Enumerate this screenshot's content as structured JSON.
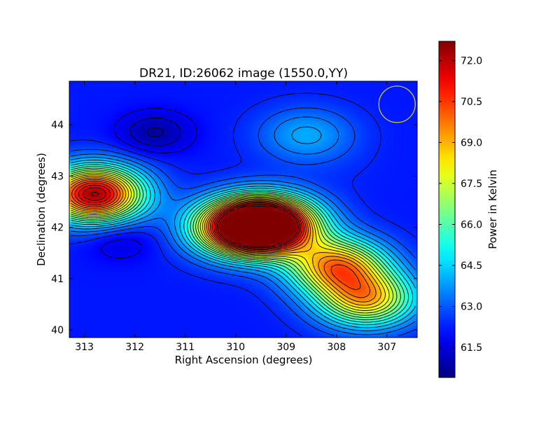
{
  "chart_data": {
    "type": "heatmap",
    "title": "DR21, ID:26062 image (1550.0,YY)",
    "xlabel": "Right Ascension (degrees)",
    "ylabel": "Declination (degrees)",
    "xlim": [
      313.3,
      306.4
    ],
    "ylim": [
      39.85,
      44.85
    ],
    "x_ticks": [
      "313",
      "312",
      "311",
      "310",
      "309",
      "308",
      "307"
    ],
    "x_tick_values": [
      313,
      312,
      311,
      310,
      309,
      308,
      307
    ],
    "y_ticks": [
      "40",
      "41",
      "42",
      "43",
      "44"
    ],
    "y_tick_values": [
      40,
      41,
      42,
      43,
      44
    ],
    "colorbar": {
      "label": "Power in Kelvin",
      "range": [
        60.4,
        72.7
      ],
      "ticks": [
        "61.5",
        "63.0",
        "64.5",
        "66.0",
        "67.5",
        "69.0",
        "70.5",
        "72.0"
      ],
      "tick_values": [
        61.5,
        63.0,
        64.5,
        66.0,
        67.5,
        69.0,
        70.5,
        72.0
      ],
      "colormap": "jet"
    },
    "features": [
      {
        "ra": 312.8,
        "dec": 42.65,
        "level": 72.3
      },
      {
        "ra": 309.3,
        "dec": 42.05,
        "level": 72.6
      },
      {
        "ra": 309.9,
        "dec": 42.0,
        "level": 71.2
      },
      {
        "ra": 308.0,
        "dec": 41.25,
        "level": 69.2
      },
      {
        "ra": 307.4,
        "dec": 40.6,
        "level": 68.5
      },
      {
        "ra": 311.6,
        "dec": 43.85,
        "level": 60.8
      },
      {
        "ra": 312.3,
        "dec": 41.75,
        "level": 61.4
      },
      {
        "ra": 308.6,
        "dec": 43.8,
        "level": 64.0
      },
      {
        "ra": 307.9,
        "dec": 43.1,
        "level": 62.3
      }
    ],
    "contour_count": 24,
    "beam_marker": {
      "ra": 306.8,
      "dec": 44.4,
      "color": "#c8c834"
    }
  }
}
